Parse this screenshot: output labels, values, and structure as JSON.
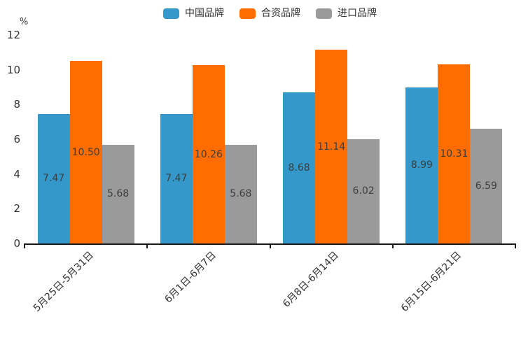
{
  "chart": {
    "unit_label": "%"
  },
  "chart_data": {
    "type": "bar",
    "title": "",
    "xlabel": "",
    "ylabel": "%",
    "categories": [
      "5月25日-5月31日",
      "6月1日-6月7日",
      "6月8日-6月14日",
      "6月15日-6月21日"
    ],
    "series": [
      {
        "name": "中国品牌",
        "color": "#3498cb",
        "values": [
          7.47,
          7.47,
          8.68,
          8.99
        ],
        "labels": [
          "7.47",
          "7.47",
          "8.68",
          "8.99"
        ]
      },
      {
        "name": "合资品牌",
        "color": "#ff6d00",
        "values": [
          10.5,
          10.26,
          11.14,
          10.31
        ],
        "labels": [
          "10.50",
          "10.26",
          "11.14",
          "10.31"
        ]
      },
      {
        "name": "进口品牌",
        "color": "#9a9a9a",
        "values": [
          5.68,
          5.68,
          6.02,
          6.59
        ],
        "labels": [
          "5.68",
          "5.68",
          "6.02",
          "6.59"
        ]
      }
    ],
    "y_ticks": [
      0,
      2,
      4,
      6,
      8,
      10,
      12
    ],
    "ylim": [
      0,
      12
    ],
    "grid": false,
    "legend_position": "top",
    "value_labels": "inside-center",
    "colors": {
      "axis": "#1a1a1a",
      "tick_text": "#333333",
      "value_text": "#3d3d3d"
    }
  }
}
